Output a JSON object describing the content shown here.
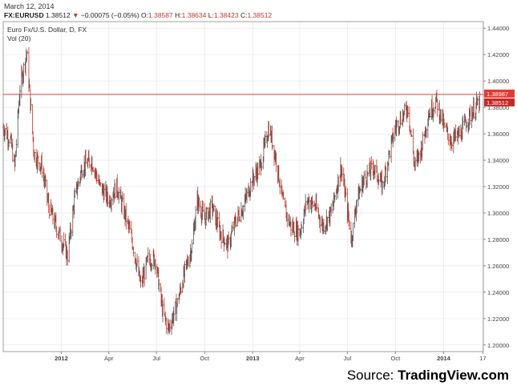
{
  "header": {
    "date": "March 12, 2014",
    "symbol": "FX:EURUSD",
    "last": "1.38512",
    "change": "−0.00075 (−0.05%)",
    "open_label": "O:",
    "open": "1.38587",
    "high_label": "H:",
    "high": "1.38634",
    "low_label": "L:",
    "low": "1.38423",
    "close_label": "C:",
    "close": "1.38512"
  },
  "legend": {
    "instrument": "Euro Fx/U.S. Dollar, D, FX",
    "volume": "Vol (20)"
  },
  "source": {
    "prefix": "Source: ",
    "name": "TradingView.com"
  },
  "colors": {
    "up": "#555555",
    "down": "#c0392b",
    "hline": "#e53935",
    "grid": "#e8e8e8",
    "axis": "#888888"
  },
  "chart_data": {
    "type": "line",
    "title": "Euro Fx/U.S. Dollar, D, FX",
    "ylim": [
      1.195,
      1.445
    ],
    "y_ticks": [
      1.44,
      1.42,
      1.4,
      1.38,
      1.36,
      1.34,
      1.32,
      1.3,
      1.28,
      1.26,
      1.24,
      1.22,
      1.2
    ],
    "y_tick_labels": [
      "1.44000",
      "1.42000",
      "1.40000",
      "1.38000",
      "1.36000",
      "1.34000",
      "1.32000",
      "1.30000",
      "1.28000",
      "1.26000",
      "1.24000",
      "1.22000",
      "1.20000"
    ],
    "x_range": [
      "2011-09-12",
      "2014-03-18"
    ],
    "x_ticks": [
      {
        "date": "2012-01-01",
        "label": "2012",
        "bold": true
      },
      {
        "date": "2012-04-01",
        "label": "Apr",
        "bold": false
      },
      {
        "date": "2012-07-01",
        "label": "Jul",
        "bold": false
      },
      {
        "date": "2012-10-01",
        "label": "Oct",
        "bold": false
      },
      {
        "date": "2013-01-01",
        "label": "2013",
        "bold": true
      },
      {
        "date": "2013-04-01",
        "label": "Apr",
        "bold": false
      },
      {
        "date": "2013-07-01",
        "label": "Jul",
        "bold": false
      },
      {
        "date": "2013-10-01",
        "label": "Oct",
        "bold": false
      },
      {
        "date": "2014-01-01",
        "label": "2014",
        "bold": true
      },
      {
        "date": "2014-03-17",
        "label": "17",
        "bold": false
      }
    ],
    "grid": true,
    "horizontal_line": {
      "value": 1.38987,
      "label": "1.38987"
    },
    "last_price": {
      "value": 1.38512,
      "label": "1.38512"
    },
    "series": [
      {
        "values_x": [
          "2011-09-12",
          "2011-09-26",
          "2011-10-04",
          "2011-10-14",
          "2011-10-27",
          "2011-11-10",
          "2011-11-25",
          "2011-12-08",
          "2011-12-22",
          "2012-01-13",
          "2012-01-27",
          "2012-02-10",
          "2012-02-28",
          "2012-03-15",
          "2012-04-02",
          "2012-04-16",
          "2012-05-01",
          "2012-05-15",
          "2012-06-01",
          "2012-06-15",
          "2012-06-29",
          "2012-07-13",
          "2012-07-24",
          "2012-08-10",
          "2012-08-24",
          "2012-09-07",
          "2012-09-17",
          "2012-10-01",
          "2012-10-15",
          "2012-10-31",
          "2012-11-15",
          "2012-11-30",
          "2012-12-14",
          "2012-12-31",
          "2013-01-15",
          "2013-02-01",
          "2013-02-15",
          "2013-03-01",
          "2013-03-15",
          "2013-04-01",
          "2013-04-15",
          "2013-05-01",
          "2013-05-15",
          "2013-05-31",
          "2013-06-19",
          "2013-07-09",
          "2013-07-19",
          "2013-08-01",
          "2013-08-20",
          "2013-09-06",
          "2013-09-19",
          "2013-10-01",
          "2013-10-25",
          "2013-11-07",
          "2013-11-20",
          "2013-12-03",
          "2013-12-18",
          "2014-01-02",
          "2014-01-15",
          "2014-02-03",
          "2014-02-14",
          "2014-03-03",
          "2014-03-12"
        ],
        "values": [
          1.365,
          1.355,
          1.335,
          1.395,
          1.422,
          1.345,
          1.335,
          1.305,
          1.29,
          1.268,
          1.312,
          1.335,
          1.34,
          1.32,
          1.31,
          1.32,
          1.3,
          1.28,
          1.245,
          1.265,
          1.265,
          1.225,
          1.212,
          1.232,
          1.255,
          1.275,
          1.31,
          1.295,
          1.305,
          1.285,
          1.275,
          1.295,
          1.305,
          1.325,
          1.335,
          1.365,
          1.34,
          1.305,
          1.29,
          1.285,
          1.31,
          1.305,
          1.29,
          1.3,
          1.335,
          1.28,
          1.31,
          1.325,
          1.335,
          1.32,
          1.345,
          1.365,
          1.38,
          1.335,
          1.35,
          1.375,
          1.385,
          1.365,
          1.355,
          1.36,
          1.37,
          1.38,
          1.385
        ]
      }
    ]
  }
}
